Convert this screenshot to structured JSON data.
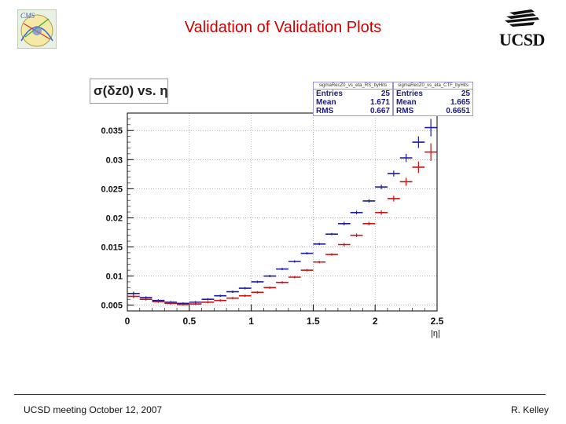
{
  "slide": {
    "title": "Validation of Validation Plots",
    "footer_left": "UCSD meeting October 12, 2007",
    "footer_right": "R. Kelley",
    "logo_right_text": "UCSD",
    "logo_left_text": "CMS"
  },
  "colors": {
    "title": "#cc0000",
    "series_blue": "#1a1aa0",
    "series_red": "#cc1111"
  },
  "chart_data": {
    "type": "scatter",
    "title": "σ(δz0) vs. η",
    "xlabel": "|η|",
    "ylabel": "",
    "xlim": [
      0,
      2.5
    ],
    "ylim": [
      0.004,
      0.038
    ],
    "x_ticks": [
      "0",
      "0.5",
      "1",
      "1.5",
      "2",
      "2.5"
    ],
    "y_ticks": [
      "0.005",
      "0.01",
      "0.015",
      "0.02",
      "0.025",
      "0.03",
      "0.035"
    ],
    "grid": true,
    "bin_width": 0.1,
    "x": [
      0.05,
      0.15,
      0.25,
      0.35,
      0.45,
      0.55,
      0.65,
      0.75,
      0.85,
      0.95,
      1.05,
      1.15,
      1.25,
      1.35,
      1.45,
      1.55,
      1.65,
      1.75,
      1.85,
      1.95,
      2.05,
      2.15,
      2.25,
      2.35,
      2.45
    ],
    "series": [
      {
        "name": "sigmaRecZ0_vs_eta_RS_byHits",
        "color": "blue",
        "values": [
          0.007,
          0.0063,
          0.0058,
          0.0055,
          0.0053,
          0.0055,
          0.006,
          0.0066,
          0.0073,
          0.0079,
          0.009,
          0.01,
          0.0112,
          0.0125,
          0.0139,
          0.0155,
          0.0172,
          0.019,
          0.0209,
          0.0229,
          0.0253,
          0.0276,
          0.0303,
          0.033,
          0.0355
        ],
        "errors": [
          0.0003,
          0.0002,
          0.0002,
          0.0002,
          0.0002,
          0.0002,
          0.0002,
          0.0002,
          0.0002,
          0.0002,
          0.0002,
          0.0002,
          0.0002,
          0.0002,
          0.0002,
          0.0002,
          0.0002,
          0.0003,
          0.0003,
          0.0003,
          0.0004,
          0.0005,
          0.0007,
          0.001,
          0.0015
        ],
        "stats": {
          "name": "sigmaRecZ0_vs_eta_RS_byHits",
          "entries": "25",
          "mean": "1.671",
          "rms": "0.667"
        }
      },
      {
        "name": "sigmaRecZ0_vs_eta_CTF_byHits",
        "color": "red",
        "values": [
          0.0065,
          0.006,
          0.0056,
          0.0053,
          0.0051,
          0.0052,
          0.0055,
          0.0058,
          0.0062,
          0.0066,
          0.0072,
          0.008,
          0.0089,
          0.0098,
          0.011,
          0.0124,
          0.0137,
          0.0154,
          0.017,
          0.019,
          0.0209,
          0.0233,
          0.0262,
          0.0287,
          0.0313
        ],
        "errors": [
          0.0003,
          0.0002,
          0.0002,
          0.0002,
          0.0002,
          0.0002,
          0.0002,
          0.0002,
          0.0002,
          0.0002,
          0.0002,
          0.0002,
          0.0002,
          0.0002,
          0.0002,
          0.0002,
          0.0002,
          0.0003,
          0.0003,
          0.0003,
          0.0004,
          0.0005,
          0.0007,
          0.001,
          0.0015
        ],
        "stats": {
          "name": "sigmaRecZ0_vs_eta_CTF_byHits",
          "entries": "25",
          "mean": "1.665",
          "rms": "0.6651"
        }
      }
    ],
    "stat_labels": {
      "entries": "Entries",
      "mean": "Mean",
      "rms": "RMS"
    }
  }
}
